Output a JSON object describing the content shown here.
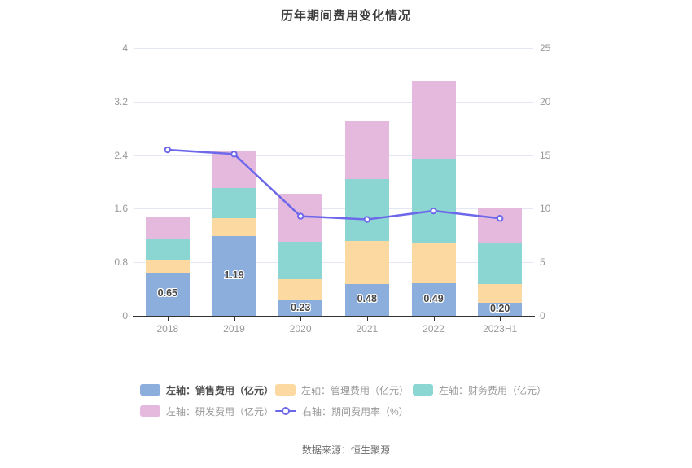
{
  "title": "历年期间费用变化情况",
  "source": "数据来源：恒生聚源",
  "colors": {
    "sales": "#8caedd",
    "management": "#fbd9a0",
    "finance": "#8bd5d2",
    "rd": "#e4b9dd",
    "ratio_line": "#6d68ea",
    "grid": "#e3e7f4",
    "axis": "#333333"
  },
  "chart_data": {
    "type": "bar",
    "subtype": "stacked-bar-with-line",
    "title": "历年期间费用变化情况",
    "categories": [
      "2018",
      "2019",
      "2020",
      "2021",
      "2022",
      "2023H1"
    ],
    "bar_series": [
      {
        "key": "sales",
        "name": "左轴：销售费用（亿元）",
        "color": "#8caedd",
        "values": [
          0.65,
          1.19,
          0.23,
          0.48,
          0.49,
          0.2
        ]
      },
      {
        "key": "management",
        "name": "左轴：管理费用（亿元）",
        "color": "#fbd9a0",
        "values": [
          0.18,
          0.27,
          0.32,
          0.64,
          0.61,
          0.28
        ]
      },
      {
        "key": "finance",
        "name": "左轴：财务费用（亿元）",
        "color": "#8bd5d2",
        "values": [
          0.31,
          0.45,
          0.56,
          0.92,
          1.25,
          0.62
        ]
      },
      {
        "key": "rd",
        "name": "左轴：研发费用（亿元）",
        "color": "#e4b9dd",
        "values": [
          0.34,
          0.55,
          0.71,
          0.86,
          1.16,
          0.5
        ]
      }
    ],
    "line_series": {
      "key": "period-expense-ratio",
      "name": "右轴：期间费用率（%）",
      "color": "#6d68ea",
      "values": [
        15.5,
        15.1,
        9.3,
        9.0,
        9.8,
        9.1
      ]
    },
    "bar_labels": [
      "0.65",
      "1.19",
      "0.23",
      "0.48",
      "0.49",
      "0.20"
    ],
    "left_axis": {
      "ticks": [
        "0",
        "0.8",
        "1.6",
        "2.4",
        "3.2",
        "4"
      ],
      "min": 0,
      "max": 4
    },
    "right_axis": {
      "ticks": [
        "0",
        "5",
        "10",
        "15",
        "20",
        "25"
      ],
      "min": 0,
      "max": 25
    },
    "grid": true,
    "legend_position": "bottom"
  },
  "legend": {
    "items": [
      {
        "label": "左轴：销售费用（亿元）",
        "swatch": "rect",
        "color": "#8caedd",
        "emphasis": true
      },
      {
        "label": "左轴：管理费用（亿元）",
        "swatch": "rect",
        "color": "#fbd9a0",
        "emphasis": false
      },
      {
        "label": "左轴：财务费用（亿元）",
        "swatch": "rect",
        "color": "#8bd5d2",
        "emphasis": false
      },
      {
        "label": "左轴：研发费用（亿元）",
        "swatch": "rect",
        "color": "#e4b9dd",
        "emphasis": false
      },
      {
        "label": "右轴：期间费用率（%）",
        "swatch": "line",
        "color": "#6d68ea",
        "emphasis": false
      }
    ]
  }
}
